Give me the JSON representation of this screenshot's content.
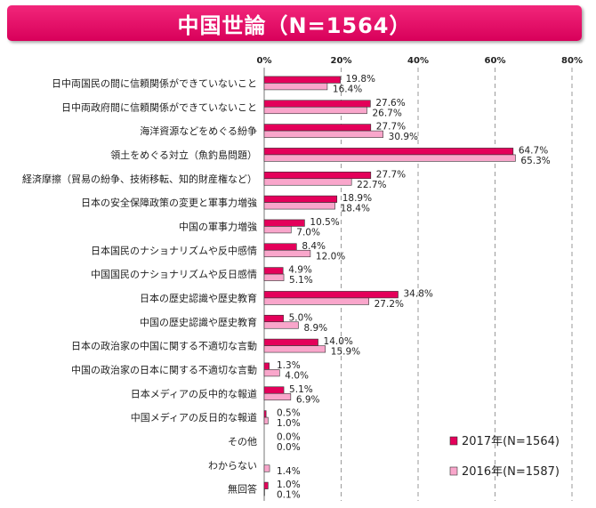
{
  "title": "中国世論（N=1564）",
  "colors": {
    "series_2017": "#e4005a",
    "series_2016": "#f9a6cb",
    "banner": "#e4005a"
  },
  "chart_data": {
    "type": "bar",
    "orientation": "horizontal",
    "title": "中国世論（N=1564）",
    "xlim": [
      0,
      80
    ],
    "xticks": [
      "0%",
      "20%",
      "40%",
      "60%",
      "80%"
    ],
    "grid": true,
    "legend_position": "bottom-right",
    "categories": [
      "日中両国民の間に信頼関係ができていないこと",
      "日中両政府間に信頼関係ができていないこと",
      "海洋資源などをめぐる紛争",
      "領土をめぐる対立（魚釣島問題）",
      "経済摩擦（貿易の紛争、技術移転、知的財産権など）",
      "日本の安全保障政策の変更と軍事力増強",
      "中国の軍事力増強",
      "日本国民のナショナリズムや反中感情",
      "中国国民のナショナリズムや反日感情",
      "日本の歴史認識や歴史教育",
      "中国の歴史認識や歴史教育",
      "日本の政治家の中国に関する不適切な言動",
      "中国の政治家の日本に関する不適切な言動",
      "日本メディアの反中的な報道",
      "中国メディアの反日的な報道",
      "その他",
      "わからない",
      "無回答"
    ],
    "series": [
      {
        "name": "2017年(N=1564)",
        "values": [
          19.8,
          27.6,
          27.7,
          64.7,
          27.7,
          18.9,
          10.5,
          8.4,
          4.9,
          34.8,
          5.0,
          14.0,
          1.3,
          5.1,
          0.5,
          0.0,
          null,
          1.0
        ],
        "labels": [
          "19.8%",
          "27.6%",
          "27.7%",
          "64.7%",
          "27.7%",
          "18.9%",
          "10.5%",
          "8.4%",
          "4.9%",
          "34.8%",
          "5.0%",
          "14.0%",
          "1.3%",
          "5.1%",
          "0.5%",
          "0.0%",
          "",
          "1.0%"
        ]
      },
      {
        "name": "2016年(N=1587)",
        "values": [
          16.4,
          26.7,
          30.9,
          65.3,
          22.7,
          18.4,
          7.0,
          12.0,
          5.1,
          27.2,
          8.9,
          15.9,
          4.0,
          6.9,
          1.0,
          0.0,
          1.4,
          0.1
        ],
        "labels": [
          "16.4%",
          "26.7%",
          "30.9%",
          "65.3%",
          "22.7%",
          "18.4%",
          "7.0%",
          "12.0%",
          "5.1%",
          "27.2%",
          "8.9%",
          "15.9%",
          "4.0%",
          "6.9%",
          "1.0%",
          "0.0%",
          "1.4%",
          "0.1%"
        ]
      }
    ]
  }
}
